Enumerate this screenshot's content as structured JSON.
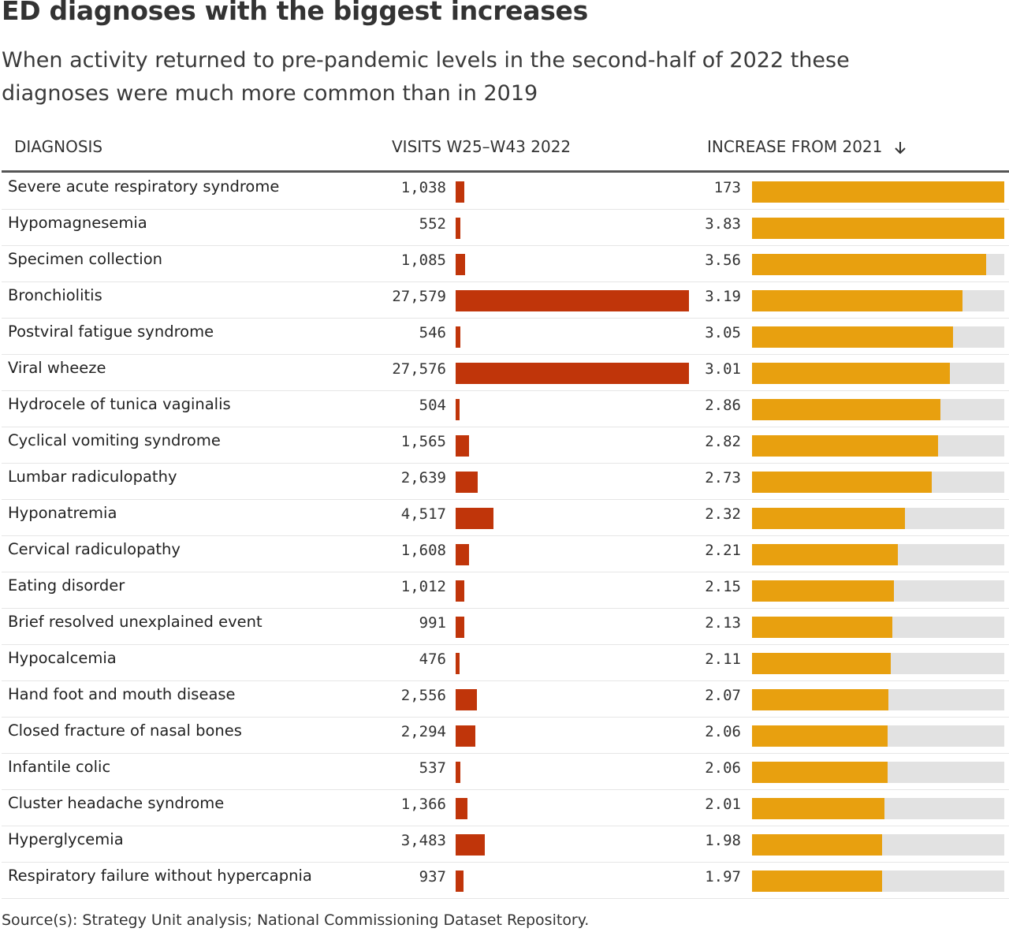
{
  "title": "ED diagnoses with the biggest increases",
  "subtitle": "When activity returned to pre-pandemic levels in the second-half of 2022 these diagnoses were much more common than in 2019",
  "columns": {
    "diagnosis": "DIAGNOSIS",
    "visits": "VISITS W25–W43 2022",
    "increase": "INCREASE FROM 2021",
    "sort_icon": "arrow-down-icon"
  },
  "source": "Source(s): Strategy Unit analysis; National Commissioning Dataset Repository.",
  "colors": {
    "visits_bar": "#c0350a",
    "increase_bar": "#e8a00f",
    "increase_bg": "#e2e2e2",
    "header_rule": "#555555"
  },
  "chart_data": {
    "type": "table",
    "visits_max": 27579,
    "increase_max": 3.83,
    "rows": [
      {
        "diagnosis": "Severe acute respiratory syndrome",
        "visits": 1038,
        "visits_label": "1,038",
        "increase": 173,
        "increase_label": "173"
      },
      {
        "diagnosis": "Hypomagnesemia",
        "visits": 552,
        "visits_label": "552",
        "increase": 3.83,
        "increase_label": "3.83"
      },
      {
        "diagnosis": "Specimen collection",
        "visits": 1085,
        "visits_label": "1,085",
        "increase": 3.56,
        "increase_label": "3.56"
      },
      {
        "diagnosis": "Bronchiolitis",
        "visits": 27579,
        "visits_label": "27,579",
        "increase": 3.19,
        "increase_label": "3.19"
      },
      {
        "diagnosis": "Postviral fatigue syndrome",
        "visits": 546,
        "visits_label": "546",
        "increase": 3.05,
        "increase_label": "3.05"
      },
      {
        "diagnosis": "Viral wheeze",
        "visits": 27576,
        "visits_label": "27,576",
        "increase": 3.01,
        "increase_label": "3.01"
      },
      {
        "diagnosis": "Hydrocele of tunica vaginalis",
        "visits": 504,
        "visits_label": "504",
        "increase": 2.86,
        "increase_label": "2.86"
      },
      {
        "diagnosis": "Cyclical vomiting syndrome",
        "visits": 1565,
        "visits_label": "1,565",
        "increase": 2.82,
        "increase_label": "2.82"
      },
      {
        "diagnosis": "Lumbar radiculopathy",
        "visits": 2639,
        "visits_label": "2,639",
        "increase": 2.73,
        "increase_label": "2.73"
      },
      {
        "diagnosis": "Hyponatremia",
        "visits": 4517,
        "visits_label": "4,517",
        "increase": 2.32,
        "increase_label": "2.32"
      },
      {
        "diagnosis": "Cervical radiculopathy",
        "visits": 1608,
        "visits_label": "1,608",
        "increase": 2.21,
        "increase_label": "2.21"
      },
      {
        "diagnosis": "Eating disorder",
        "visits": 1012,
        "visits_label": "1,012",
        "increase": 2.15,
        "increase_label": "2.15"
      },
      {
        "diagnosis": "Brief resolved unexplained event",
        "visits": 991,
        "visits_label": "991",
        "increase": 2.13,
        "increase_label": "2.13"
      },
      {
        "diagnosis": "Hypocalcemia",
        "visits": 476,
        "visits_label": "476",
        "increase": 2.11,
        "increase_label": "2.11"
      },
      {
        "diagnosis": "Hand foot and mouth disease",
        "visits": 2556,
        "visits_label": "2,556",
        "increase": 2.07,
        "increase_label": "2.07"
      },
      {
        "diagnosis": "Closed fracture of nasal bones",
        "visits": 2294,
        "visits_label": "2,294",
        "increase": 2.06,
        "increase_label": "2.06"
      },
      {
        "diagnosis": "Infantile colic",
        "visits": 537,
        "visits_label": "537",
        "increase": 2.06,
        "increase_label": "2.06"
      },
      {
        "diagnosis": "Cluster headache syndrome",
        "visits": 1366,
        "visits_label": "1,366",
        "increase": 2.01,
        "increase_label": "2.01"
      },
      {
        "diagnosis": "Hyperglycemia",
        "visits": 3483,
        "visits_label": "3,483",
        "increase": 1.98,
        "increase_label": "1.98"
      },
      {
        "diagnosis": "Respiratory failure without hypercapnia",
        "visits": 937,
        "visits_label": "937",
        "increase": 1.97,
        "increase_label": "1.97"
      }
    ]
  }
}
